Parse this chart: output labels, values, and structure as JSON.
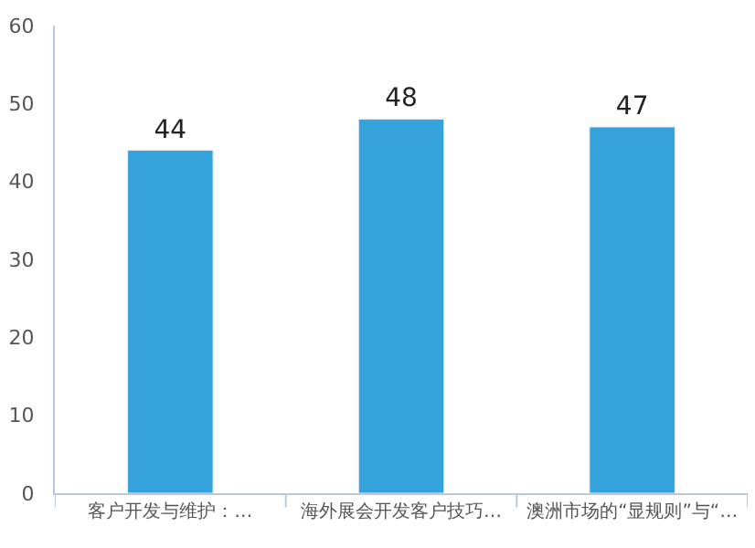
{
  "chart_data": {
    "type": "bar",
    "categories": [
      "客户开发与维护：…",
      "海外展会开发客户技巧…",
      "澳洲市场的“显规则”与“…"
    ],
    "values": [
      44,
      48,
      47
    ],
    "color": "#34a3db",
    "ylim": [
      0,
      60
    ],
    "yticks": [
      0,
      10,
      20,
      30,
      40,
      50,
      60
    ],
    "data_labels": true
  }
}
